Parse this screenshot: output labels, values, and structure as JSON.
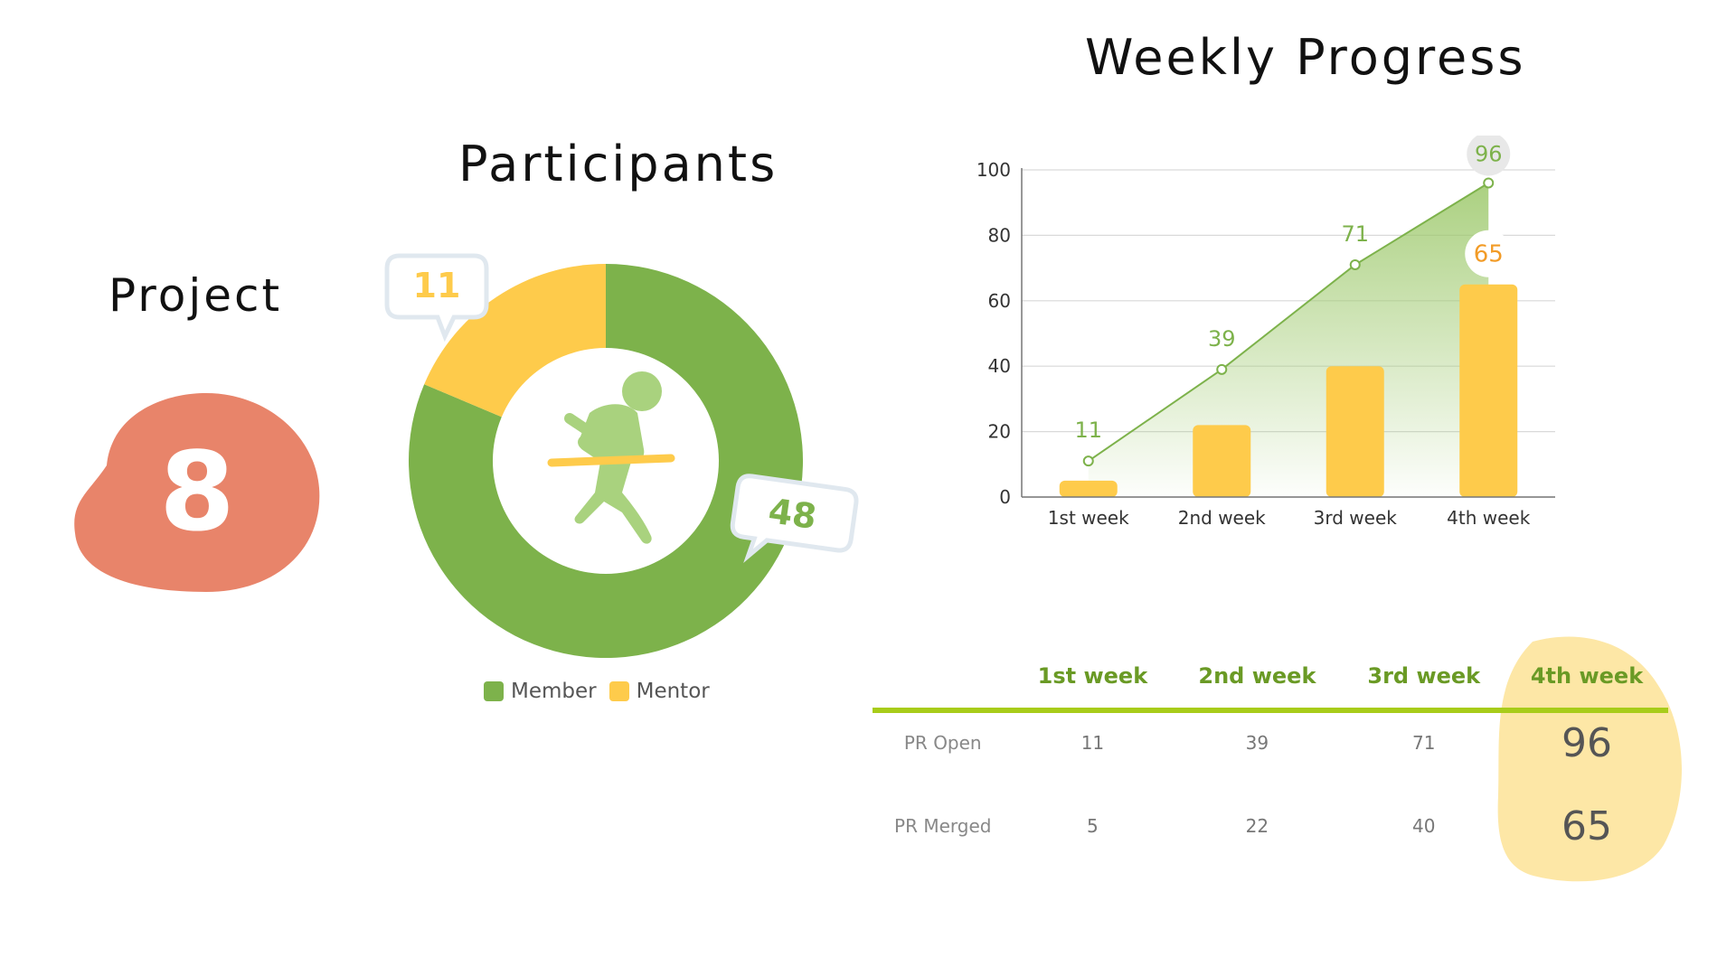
{
  "titles": {
    "project": "Project",
    "participants": "Participants",
    "weekly": "Weekly Progress"
  },
  "project": {
    "count": "8",
    "color": "#e8846a"
  },
  "colors": {
    "green": "#7db24b",
    "yellow": "#fecb4b",
    "line": "#7db24b",
    "accent_rule": "#a8cc1a",
    "highlight": "#fde7a6"
  },
  "chart_data": [
    {
      "type": "pie",
      "title": "Participants",
      "donut": true,
      "categories": [
        "Member",
        "Mentor"
      ],
      "values": [
        48,
        11
      ],
      "colors": [
        "#7db24b",
        "#fecb4b"
      ],
      "data_labels": [
        "48",
        "11"
      ],
      "legend": "bottom",
      "center_icon": "runner-finish-icon"
    },
    {
      "type": "bar",
      "title": "Weekly Progress",
      "categories": [
        "1st week",
        "2nd week",
        "3rd week",
        "4th week"
      ],
      "series": [
        {
          "name": "PR Open",
          "type": "line-area",
          "values": [
            11,
            39,
            71,
            96
          ],
          "color": "#7db24b"
        },
        {
          "name": "PR Merged",
          "type": "bar",
          "values": [
            5,
            22,
            40,
            65
          ],
          "color": "#fecb4b"
        }
      ],
      "ylim": [
        0,
        100
      ],
      "yticks": [
        0,
        20,
        40,
        60,
        80,
        100
      ],
      "grid": true,
      "labels_shown": {
        "line": [
          "11",
          "39",
          "71",
          "96"
        ],
        "bar_last": "65"
      }
    },
    {
      "type": "table",
      "columns": [
        "",
        "1st week",
        "2nd week",
        "3rd week",
        "4th week"
      ],
      "rows": [
        {
          "label": "PR Open",
          "values": [
            "11",
            "39",
            "71",
            "96"
          ]
        },
        {
          "label": "PR Merged",
          "values": [
            "5",
            "22",
            "40",
            "65"
          ]
        }
      ],
      "highlight_column": "4th week"
    }
  ]
}
